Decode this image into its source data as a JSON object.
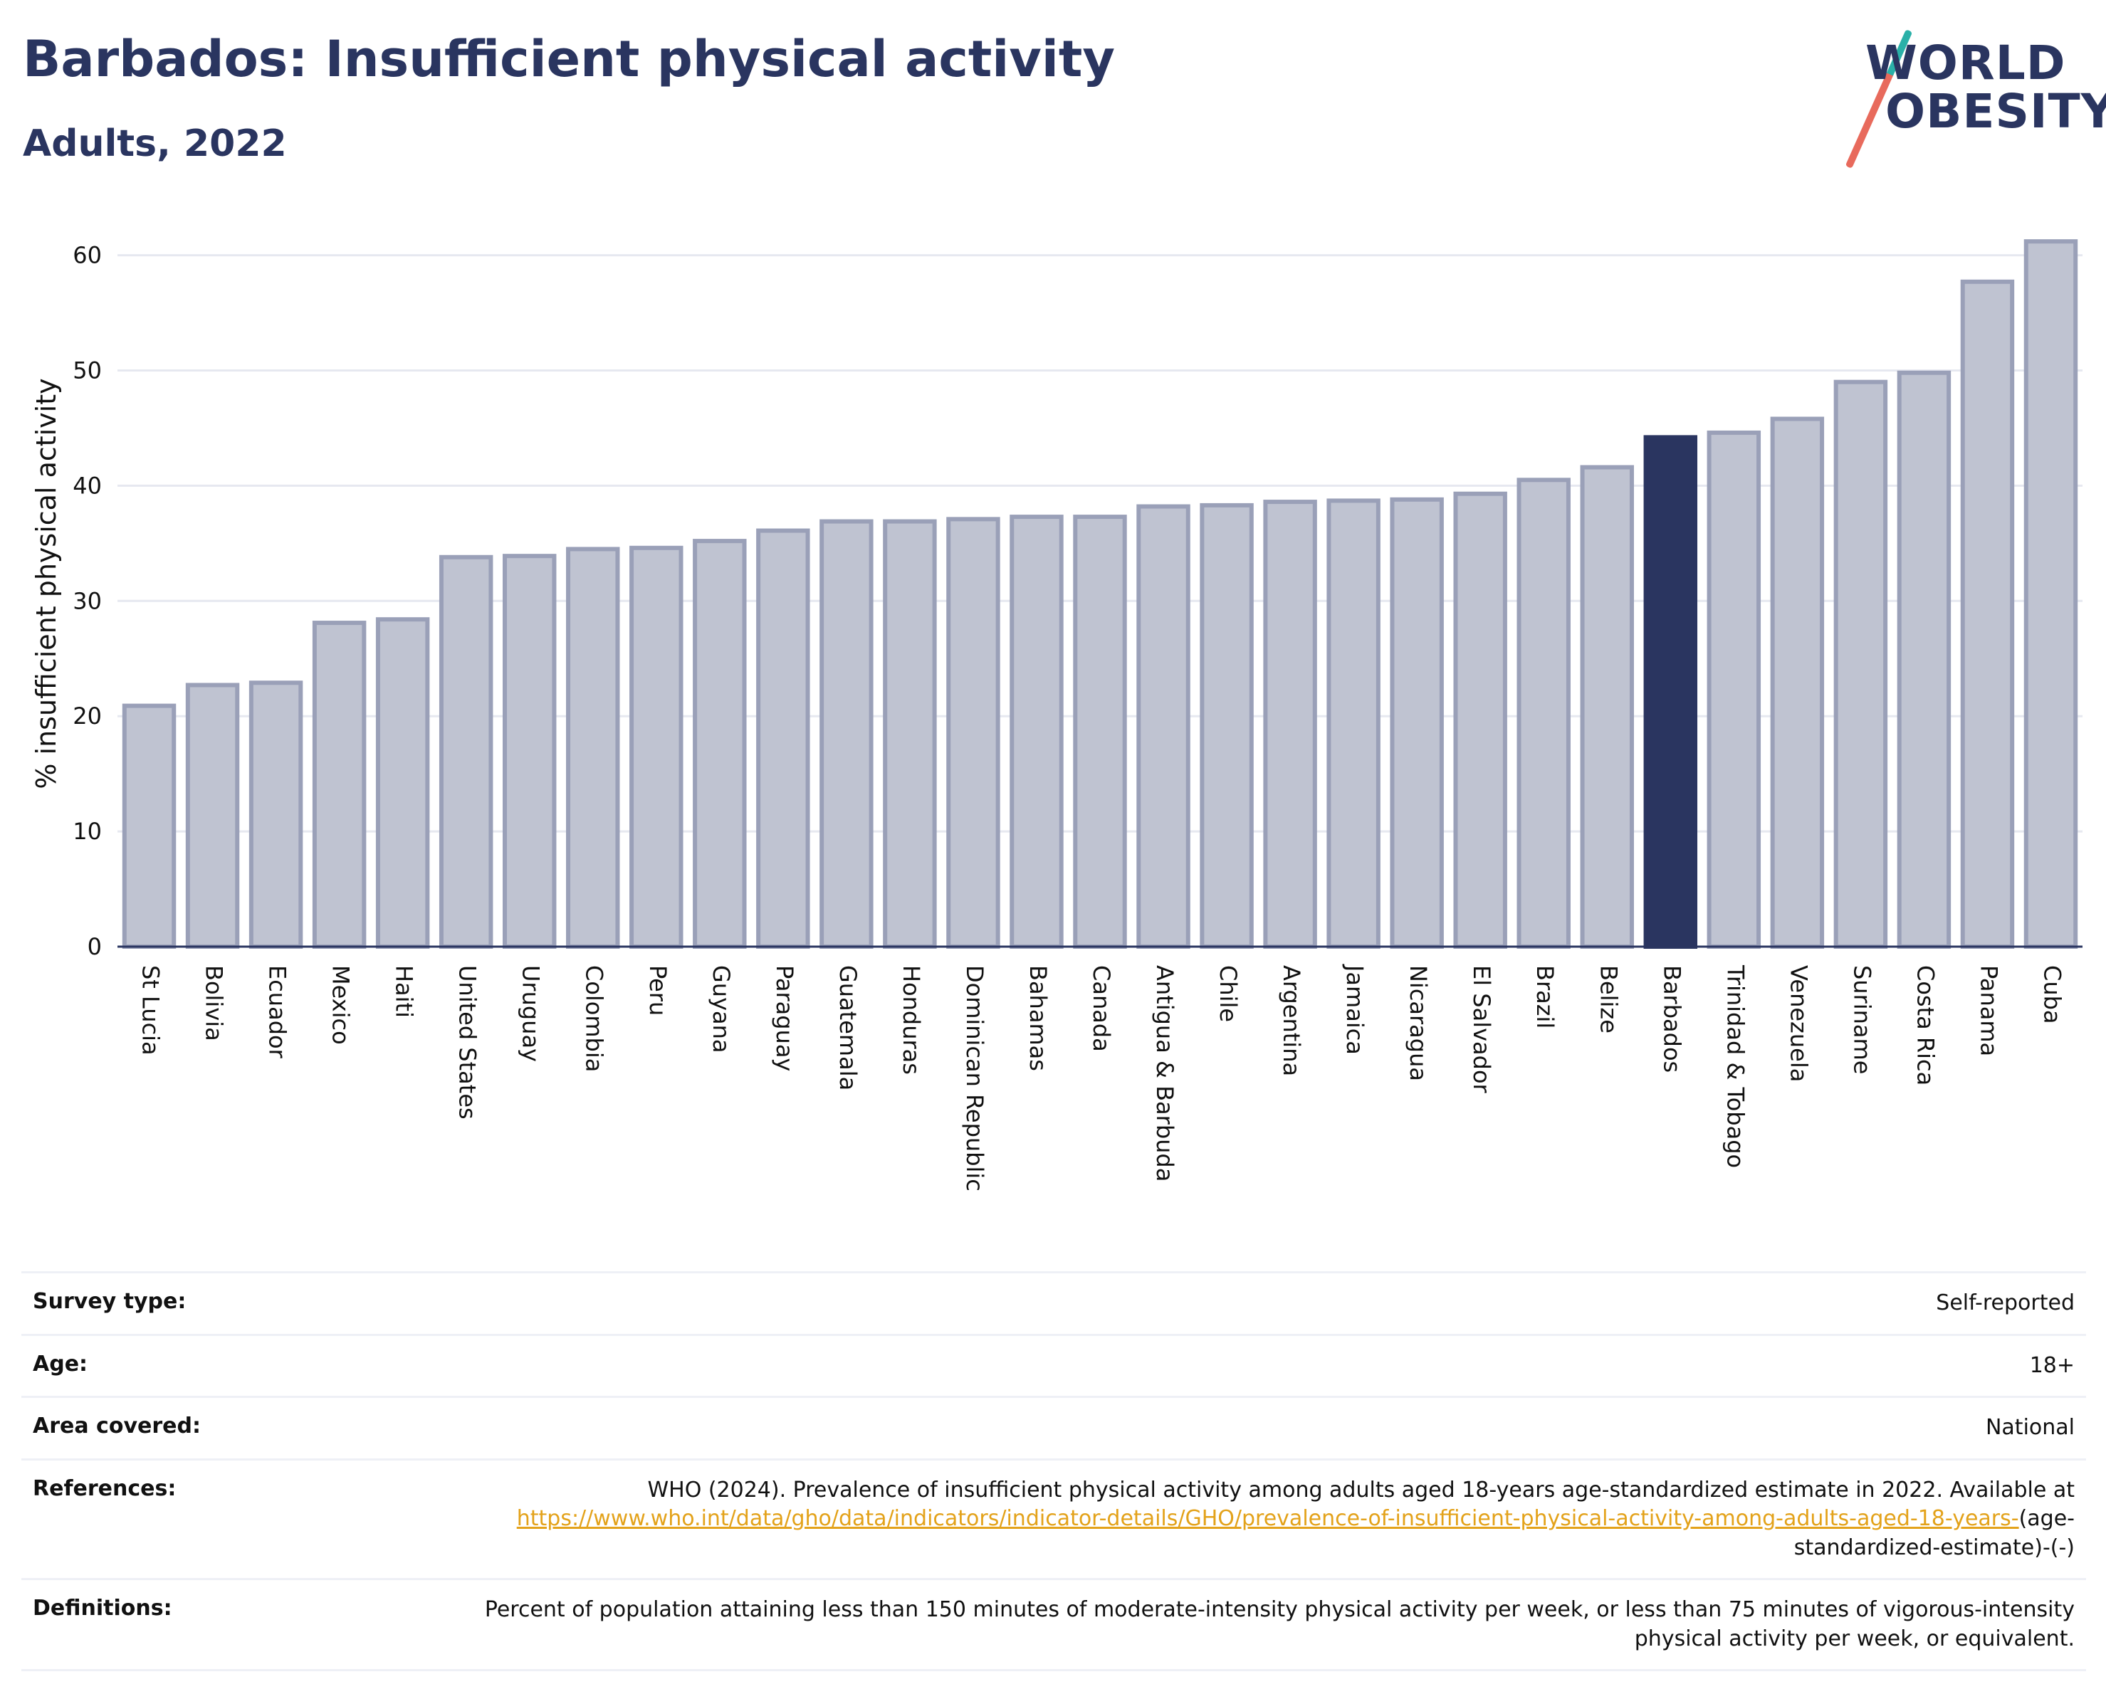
{
  "header": {
    "title": "Barbados: Insufficient physical activity",
    "subtitle": "Adults, 2022"
  },
  "logo": {
    "line1": "WORLD",
    "line2": "OBESITY"
  },
  "colors": {
    "bar": "#bfc3d1",
    "bar_border": "#9aa0b8",
    "highlight": "#2a3560",
    "grid": "#e6e8f0",
    "link": "#e3a21a"
  },
  "chart_data": {
    "type": "bar",
    "ylabel": "% insufficient physical activity",
    "ylim": [
      0,
      63
    ],
    "yticks": [
      0,
      10,
      20,
      30,
      40,
      50,
      60
    ],
    "grid": true,
    "highlight": "Barbados",
    "categories": [
      "St Lucia",
      "Bolivia",
      "Ecuador",
      "Mexico",
      "Haiti",
      "United States",
      "Uruguay",
      "Colombia",
      "Peru",
      "Guyana",
      "Paraguay",
      "Guatemala",
      "Honduras",
      "Dominican Republic",
      "Bahamas",
      "Canada",
      "Antigua & Barbuda",
      "Chile",
      "Argentina",
      "Jamaica",
      "Nicaragua",
      "El Salvador",
      "Brazil",
      "Belize",
      "Barbados",
      "Trinidad & Tobago",
      "Venezuela",
      "Suriname",
      "Costa Rica",
      "Panama",
      "Cuba"
    ],
    "values": [
      20.9,
      22.7,
      22.9,
      28.1,
      28.4,
      33.8,
      33.9,
      34.5,
      34.6,
      35.2,
      36.1,
      36.9,
      36.9,
      37.1,
      37.3,
      37.3,
      38.2,
      38.3,
      38.6,
      38.7,
      38.8,
      39.3,
      40.5,
      41.6,
      44.2,
      44.6,
      45.8,
      49.0,
      49.8,
      57.7,
      61.2
    ]
  },
  "info": {
    "survey_type": {
      "label": "Survey type:",
      "value": "Self-reported"
    },
    "age": {
      "label": "Age:",
      "value": "18+"
    },
    "area": {
      "label": "Area covered:",
      "value": "National"
    },
    "references": {
      "label": "References:",
      "text": "WHO (2024). Prevalence of insufficient physical activity among adults aged 18-years age-standardized estimate in 2022. Available at",
      "link": "https://www.who.int/data/gho/data/indicators/indicator-details/GHO/prevalence-of-insufficient-physical-activity-among-adults-aged-18-years-",
      "suffix": "(age-standardized-estimate)-(-)"
    },
    "definitions": {
      "label": "Definitions:",
      "value": "Percent of population attaining less than 150 minutes of moderate-intensity physical activity per week, or less than 75 minutes of vigorous-intensity physical activity per week, or equivalent."
    }
  }
}
